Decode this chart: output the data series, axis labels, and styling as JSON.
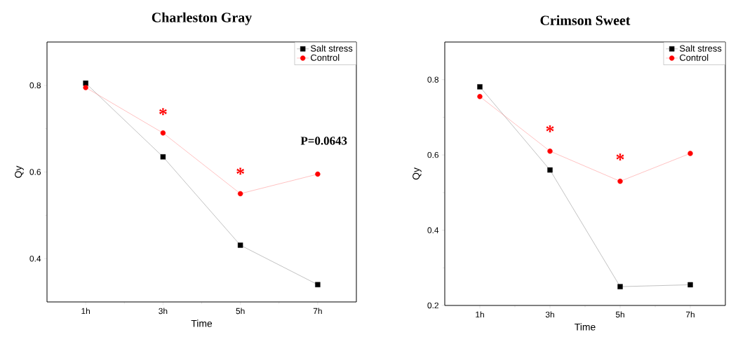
{
  "chart_data": [
    {
      "type": "line",
      "title": "Charleston Gray",
      "xlabel": "Time",
      "ylabel": "Qy",
      "x": [
        1,
        3,
        5,
        7
      ],
      "xlim": [
        0,
        8
      ],
      "xticks": [
        {
          "value": 1,
          "label": "1h"
        },
        {
          "value": 3,
          "label": "3h"
        },
        {
          "value": 5,
          "label": "5h"
        },
        {
          "value": 7,
          "label": "7h"
        }
      ],
      "ylim": [
        0.3,
        0.9
      ],
      "yticks": [
        0.4,
        0.6,
        0.8
      ],
      "legend": "top right",
      "series": [
        {
          "name": "Salt stress",
          "color": "#000000",
          "marker": "square",
          "values": [
            0.805,
            0.635,
            0.431,
            0.34
          ]
        },
        {
          "name": "Control",
          "color": "#ff0000",
          "marker": "circle",
          "values": [
            0.795,
            0.69,
            0.55,
            0.595
          ]
        }
      ],
      "annotations": [
        "*",
        "*",
        "P=0.0643"
      ]
    },
    {
      "type": "line",
      "title": "Crimson Sweet",
      "xlabel": "Time",
      "ylabel": "Qy",
      "x": [
        1,
        3,
        5,
        7
      ],
      "xlim": [
        0,
        8
      ],
      "xticks": [
        {
          "value": 1,
          "label": "1h"
        },
        {
          "value": 3,
          "label": "3h"
        },
        {
          "value": 5,
          "label": "5h"
        },
        {
          "value": 7,
          "label": "7h"
        }
      ],
      "ylim": [
        0.2,
        0.9
      ],
      "yticks": [
        0.2,
        0.4,
        0.6,
        0.8
      ],
      "legend": "top right",
      "series": [
        {
          "name": "Salt stress",
          "color": "#000000",
          "marker": "square",
          "values": [
            0.781,
            0.56,
            0.25,
            0.255
          ]
        },
        {
          "name": "Control",
          "color": "#ff0000",
          "marker": "circle",
          "values": [
            0.755,
            0.61,
            0.53,
            0.604
          ]
        }
      ],
      "annotations": [
        "*",
        "*"
      ]
    }
  ]
}
